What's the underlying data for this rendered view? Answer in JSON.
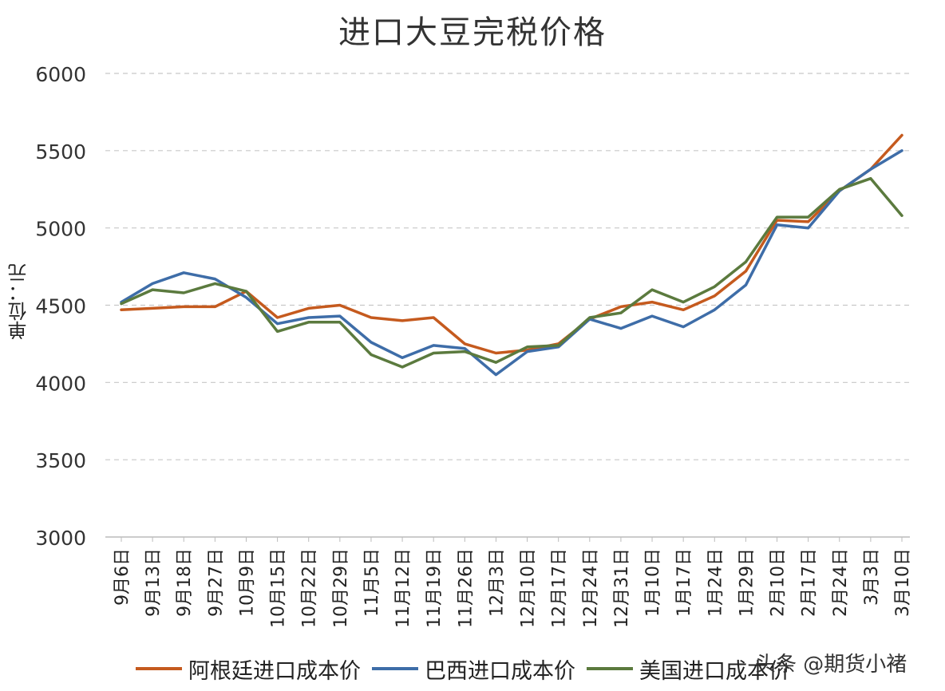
{
  "watermark": "头条 @期货小褚",
  "chart_data": {
    "type": "line",
    "title": "进口大豆完税价格",
    "ylabel": "单位：元",
    "xlabel": "",
    "ylim": [
      3000,
      6000
    ],
    "yticks": [
      3000,
      3500,
      4000,
      4500,
      5000,
      5500,
      6000
    ],
    "grid": true,
    "legend_position": "bottom",
    "x": [
      "9月6日",
      "9月13日",
      "9月18日",
      "9月27日",
      "10月9日",
      "10月15日",
      "10月22日",
      "10月29日",
      "11月5日",
      "11月12日",
      "11月19日",
      "11月26日",
      "12月3日",
      "12月10日",
      "12月17日",
      "12月24日",
      "12月31日",
      "1月10日",
      "1月17日",
      "1月24日",
      "1月29日",
      "2月10日",
      "2月17日",
      "2月24日",
      "3月3日",
      "3月10日"
    ],
    "series": [
      {
        "name": "阿根廷进口成本价",
        "color": "#c55a1e",
        "values": [
          4470,
          4480,
          4490,
          4490,
          4590,
          4420,
          4480,
          4500,
          4420,
          4400,
          4420,
          4250,
          4190,
          4210,
          4250,
          4410,
          4490,
          4520,
          4470,
          4560,
          4720,
          5050,
          5040,
          5240,
          5380,
          5600
        ]
      },
      {
        "name": "巴西进口成本价",
        "color": "#3e6da8",
        "values": [
          4520,
          4640,
          4710,
          4670,
          4550,
          4380,
          4420,
          4430,
          4260,
          4160,
          4240,
          4220,
          4050,
          4200,
          4230,
          4410,
          4350,
          4430,
          4360,
          4470,
          4630,
          5020,
          5000,
          5240,
          5380,
          5500
        ]
      },
      {
        "name": "美国进口成本价",
        "color": "#5b7a3e",
        "values": [
          4510,
          4600,
          4580,
          4640,
          4590,
          4330,
          4390,
          4390,
          4180,
          4100,
          4190,
          4200,
          4130,
          4230,
          4240,
          4420,
          4450,
          4600,
          4520,
          4620,
          4780,
          5070,
          5070,
          5250,
          5320,
          5080
        ]
      }
    ]
  }
}
